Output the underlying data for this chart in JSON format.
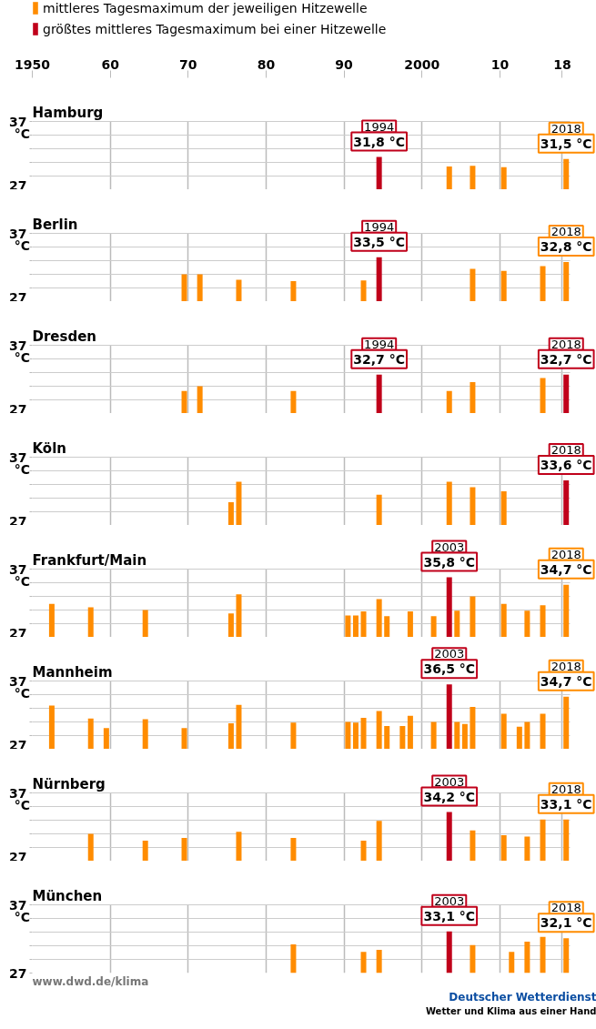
{
  "chart_data": [
    {
      "type": "bar",
      "title": "Hamburg",
      "xlim": [
        1950,
        2019
      ],
      "xticks": [
        1950,
        {
          "value": 1960,
          "label": "60"
        },
        {
          "value": 1970,
          "label": "70"
        },
        {
          "value": 1980,
          "label": "80"
        },
        {
          "value": 1990,
          "label": "90"
        },
        2000,
        {
          "value": 2010,
          "label": "10"
        },
        {
          "value": 2018,
          "label": "18"
        }
      ],
      "ylim": [
        27,
        37
      ],
      "yticks": [
        27,
        {
          "value": 29,
          "label": null
        },
        {
          "value": 31,
          "label": null
        },
        {
          "value": 33,
          "label": null
        },
        {
          "value": 35,
          "label": null
        },
        37
      ],
      "ylabel": "°C",
      "grid": true,
      "legend": "top",
      "series": [
        {
          "name": "mittleres Tagesmaximum der jeweiligen Hitzewelle",
          "color": "#ff8c00",
          "x": [
            2003,
            2006,
            2010,
            2018
          ],
          "values": [
            30.4,
            30.5,
            30.3,
            31.5
          ],
          "value_labels": [
            null,
            null,
            null,
            "2018\n31,5 °C"
          ]
        },
        {
          "name": "größtes mittleres Tagesmaximum bei einer Hitzewelle",
          "color": "#c0001a",
          "x": [
            1994
          ],
          "values": [
            31.8
          ],
          "value_labels": [
            "1994\n31,8 °C"
          ]
        }
      ]
    },
    {
      "type": "bar",
      "title": "Berlin",
      "xlim": [
        1950,
        2019
      ],
      "xticks": [
        1950,
        1960,
        1970,
        1980,
        1990,
        2000,
        2010,
        2018
      ],
      "ylim": [
        27,
        37
      ],
      "yticks": [
        27,
        {
          "value": 29,
          "label": null
        },
        {
          "value": 31,
          "label": null
        },
        {
          "value": 33,
          "label": null
        },
        {
          "value": 35,
          "label": null
        },
        37
      ],
      "ylabel": "°C",
      "grid": true,
      "tick_labels": "y",
      "series": [
        {
          "color": "#ff8c00",
          "x": [
            1969,
            1971,
            1976,
            1983,
            1992,
            2006,
            2010,
            2015,
            2018
          ],
          "values": [
            31.0,
            31.0,
            30.2,
            30.0,
            30.1,
            31.8,
            31.5,
            32.2,
            32.8
          ],
          "value_labels": [
            null,
            null,
            null,
            null,
            null,
            null,
            null,
            null,
            "2018\n32,8 °C"
          ]
        },
        {
          "color": "#c0001a",
          "x": [
            1994
          ],
          "values": [
            33.5
          ],
          "value_labels": [
            "1994\n33,5 °C"
          ]
        }
      ]
    },
    {
      "type": "bar",
      "title": "Dresden",
      "xlim": [
        1950,
        2019
      ],
      "xticks": [
        1950,
        1960,
        1970,
        1980,
        1990,
        2000,
        2010,
        2018
      ],
      "ylim": [
        27,
        37
      ],
      "yticks": [
        27,
        {
          "value": 29,
          "label": null
        },
        {
          "value": 31,
          "label": null
        },
        {
          "value": 33,
          "label": null
        },
        {
          "value": 35,
          "label": null
        },
        37
      ],
      "ylabel": "°C",
      "grid": true,
      "tick_labels": "y",
      "series": [
        {
          "color": "#ff8c00",
          "x": [
            1969,
            1971,
            1983,
            2003,
            2006,
            2015
          ],
          "values": [
            30.3,
            31.0,
            30.3,
            30.3,
            31.6,
            32.2
          ],
          "value_labels": [
            null,
            null,
            null,
            null,
            null,
            null
          ]
        },
        {
          "color": "#c0001a",
          "x": [
            1994,
            2018
          ],
          "values": [
            32.7,
            32.7
          ],
          "value_labels": [
            "1994\n32,7 °C",
            "2018\n32,7 °C"
          ]
        }
      ]
    },
    {
      "type": "bar",
      "title": "Köln",
      "xlim": [
        1950,
        2019
      ],
      "xticks": [
        1950,
        1960,
        1970,
        1980,
        1990,
        2000,
        2010,
        2018
      ],
      "ylim": [
        27,
        37
      ],
      "yticks": [
        27,
        {
          "value": 29,
          "label": null
        },
        {
          "value": 31,
          "label": null
        },
        {
          "value": 33,
          "label": null
        },
        {
          "value": 35,
          "label": null
        },
        37
      ],
      "ylabel": "°C",
      "grid": true,
      "tick_labels": "y",
      "series": [
        {
          "color": "#ff8c00",
          "x": [
            1975,
            1976,
            1994,
            2003,
            2006,
            2010
          ],
          "values": [
            30.4,
            33.4,
            31.5,
            33.4,
            32.6,
            32.0
          ],
          "value_labels": [
            null,
            null,
            null,
            null,
            null,
            null
          ]
        },
        {
          "color": "#c0001a",
          "x": [
            2018
          ],
          "values": [
            33.6
          ],
          "value_labels": [
            "2018\n33,6 °C"
          ]
        }
      ]
    },
    {
      "type": "bar",
      "title": "Frankfurt/Main",
      "xlim": [
        1950,
        2019
      ],
      "xticks": [
        1950,
        1960,
        1970,
        1980,
        1990,
        2000,
        2010,
        2018
      ],
      "ylim": [
        27,
        37
      ],
      "yticks": [
        27,
        {
          "value": 29,
          "label": null
        },
        {
          "value": 31,
          "label": null
        },
        {
          "value": 33,
          "label": null
        },
        {
          "value": 35,
          "label": null
        },
        37
      ],
      "ylabel": "°C",
      "grid": true,
      "tick_labels": "y",
      "series": [
        {
          "color": "#ff8c00",
          "x": [
            1952,
            1957,
            1964,
            1975,
            1976,
            1990,
            1991,
            1992,
            1994,
            1995,
            1998,
            2001,
            2004,
            2006,
            2010,
            2013,
            2015,
            2018
          ],
          "values": [
            31.9,
            31.4,
            31.0,
            30.5,
            33.3,
            30.2,
            30.2,
            30.8,
            32.6,
            30.1,
            30.8,
            30.1,
            30.9,
            33.0,
            31.9,
            30.9,
            31.7,
            34.7
          ],
          "value_labels": [
            null,
            null,
            null,
            null,
            null,
            null,
            null,
            null,
            null,
            null,
            null,
            null,
            null,
            null,
            null,
            null,
            null,
            "2018\n34,7 °C"
          ]
        },
        {
          "color": "#c0001a",
          "x": [
            2003
          ],
          "values": [
            35.8
          ],
          "value_labels": [
            "2003\n35,8 °C"
          ]
        }
      ]
    },
    {
      "type": "bar",
      "title": "Mannheim",
      "xlim": [
        1950,
        2019
      ],
      "xticks": [
        1950,
        1960,
        1970,
        1980,
        1990,
        2000,
        2010,
        2018
      ],
      "ylim": [
        27,
        37
      ],
      "yticks": [
        27,
        {
          "value": 29,
          "label": null
        },
        {
          "value": 31,
          "label": null
        },
        {
          "value": 33,
          "label": null
        },
        {
          "value": 35,
          "label": null
        },
        37
      ],
      "ylabel": "°C",
      "grid": true,
      "tick_labels": "y",
      "series": [
        {
          "color": "#ff8c00",
          "x": [
            1952,
            1957,
            1959,
            1964,
            1969,
            1975,
            1976,
            1983,
            1990,
            1991,
            1992,
            1994,
            1995,
            1997,
            1998,
            2001,
            2004,
            2005,
            2006,
            2010,
            2012,
            2013,
            2015,
            2018
          ],
          "values": [
            33.4,
            31.5,
            30.1,
            31.4,
            30.1,
            30.8,
            33.5,
            30.9,
            31.0,
            30.9,
            31.6,
            32.6,
            30.4,
            30.4,
            31.9,
            31.0,
            31.0,
            30.7,
            33.2,
            32.2,
            30.3,
            31.0,
            32.2,
            34.7
          ],
          "value_labels": [
            null,
            null,
            null,
            null,
            null,
            null,
            null,
            null,
            null,
            null,
            null,
            null,
            null,
            null,
            null,
            null,
            null,
            null,
            null,
            null,
            null,
            null,
            null,
            "2018\n34,7 °C"
          ]
        },
        {
          "color": "#c0001a",
          "x": [
            2003
          ],
          "values": [
            36.5
          ],
          "value_labels": [
            "2003\n36,5 °C"
          ]
        }
      ]
    },
    {
      "type": "bar",
      "title": "Nürnberg",
      "xlim": [
        1950,
        2019
      ],
      "xticks": [
        1950,
        1960,
        1970,
        1980,
        1990,
        2000,
        2010,
        2018
      ],
      "ylim": [
        27,
        37
      ],
      "yticks": [
        27,
        {
          "value": 29,
          "label": null
        },
        {
          "value": 31,
          "label": null
        },
        {
          "value": 33,
          "label": null
        },
        {
          "value": 35,
          "label": null
        },
        37
      ],
      "ylabel": "°C",
      "grid": true,
      "tick_labels": "y",
      "series": [
        {
          "color": "#ff8c00",
          "x": [
            1957,
            1964,
            1969,
            1976,
            1983,
            1992,
            1994,
            2006,
            2010,
            2013,
            2015,
            2018
          ],
          "values": [
            31.0,
            30.0,
            30.4,
            31.3,
            30.4,
            30.0,
            32.9,
            31.5,
            30.8,
            30.6,
            33.1,
            33.1
          ],
          "value_labels": [
            null,
            null,
            null,
            null,
            null,
            null,
            null,
            null,
            null,
            null,
            null,
            "2018\n33,1 °C"
          ]
        },
        {
          "color": "#c0001a",
          "x": [
            2003
          ],
          "values": [
            34.2
          ],
          "value_labels": [
            "2003\n34,2 °C"
          ]
        }
      ]
    },
    {
      "type": "bar",
      "title": "München",
      "xlim": [
        1950,
        2019
      ],
      "xticks": [
        1950,
        1960,
        1970,
        1980,
        1990,
        2000,
        2010,
        2018
      ],
      "ylim": [
        27,
        37
      ],
      "yticks": [
        27,
        {
          "value": 29,
          "label": null
        },
        {
          "value": 31,
          "label": null
        },
        {
          "value": 33,
          "label": null
        },
        {
          "value": 35,
          "label": null
        },
        37
      ],
      "ylabel": "°C",
      "grid": true,
      "tick_labels": "y",
      "annotations": [
        "www.dwd.de/klima",
        "Deutscher Wetterdienst",
        "Wetter und Klima aus einer Hand"
      ],
      "series": [
        {
          "color": "#ff8c00",
          "x": [
            1983,
            1992,
            1994,
            2006,
            2011,
            2013,
            2015,
            2018
          ],
          "values": [
            31.2,
            30.1,
            30.4,
            31.1,
            30.1,
            31.6,
            32.3,
            32.1
          ],
          "value_labels": [
            null,
            null,
            null,
            null,
            null,
            null,
            null,
            "2018\n32,1 °C"
          ]
        },
        {
          "color": "#c0001a",
          "x": [
            2003
          ],
          "values": [
            33.1
          ],
          "value_labels": [
            "2003\n33,1 °C"
          ]
        }
      ]
    }
  ]
}
